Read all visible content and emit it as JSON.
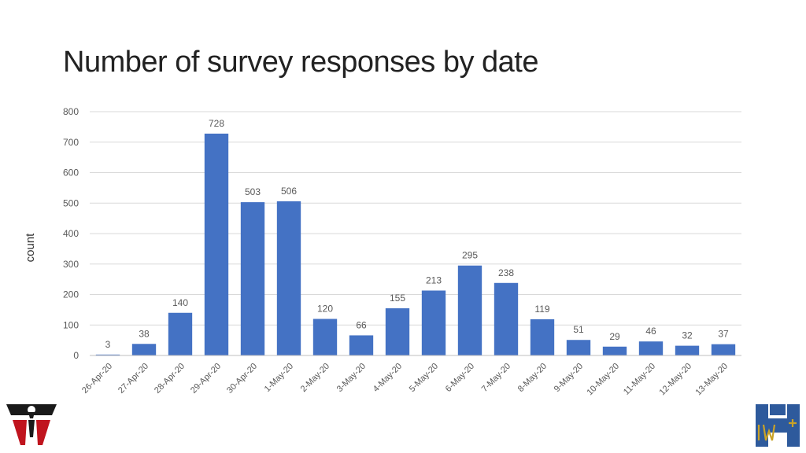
{
  "slide": {
    "title": "Number of survey responses by date"
  },
  "colors": {
    "bar": "#4472C4",
    "grid": "#D9D9D9",
    "text": "#595959",
    "logo_left_dark": "#1a1a1a",
    "logo_left_red": "#C0141E",
    "logo_right_blue": "#2E5A9C",
    "logo_right_gold": "#C9A227"
  },
  "logos": {
    "left": "red-black-emblem-logo",
    "right": "iw-plus-logo"
  },
  "chart_data": {
    "type": "bar",
    "title": "",
    "xlabel": "",
    "ylabel": "count",
    "ylim": [
      0,
      800
    ],
    "yticks": [
      0,
      100,
      200,
      300,
      400,
      500,
      600,
      700,
      800
    ],
    "grid": true,
    "legend": "none",
    "data_labels": true,
    "categories": [
      "26-Apr-20",
      "27-Apr-20",
      "28-Apr-20",
      "29-Apr-20",
      "30-Apr-20",
      "1-May-20",
      "2-May-20",
      "3-May-20",
      "4-May-20",
      "5-May-20",
      "6-May-20",
      "7-May-20",
      "8-May-20",
      "9-May-20",
      "10-May-20",
      "11-May-20",
      "12-May-20",
      "13-May-20"
    ],
    "values": [
      3,
      38,
      140,
      728,
      503,
      506,
      120,
      66,
      155,
      213,
      295,
      238,
      119,
      51,
      29,
      46,
      32,
      37
    ]
  }
}
